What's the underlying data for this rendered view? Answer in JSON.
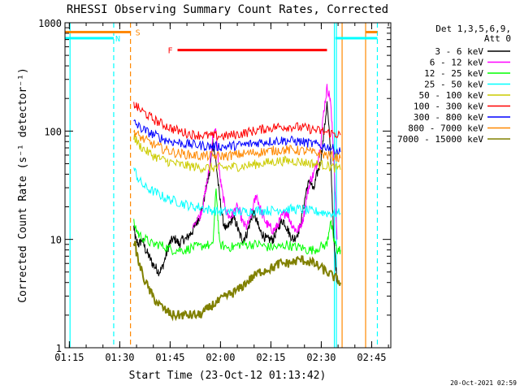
{
  "chart_data": {
    "type": "line",
    "title": "RHESSI Observing Summary Count Rates, Corrected",
    "xlabel": "Start Time (23-Oct-12 01:13:42)",
    "ylabel": "Corrected Count Rate (s⁻¹ detector⁻¹)",
    "x_unit": "minutes after 01:13:42",
    "xlim": [
      0,
      97
    ],
    "ylim": [
      1,
      1000
    ],
    "yscale": "log",
    "x_ticks": [
      {
        "v": 1.3,
        "label": "01:15"
      },
      {
        "v": 16.3,
        "label": "01:30"
      },
      {
        "v": 31.3,
        "label": "01:45"
      },
      {
        "v": 46.3,
        "label": "02:00"
      },
      {
        "v": 61.3,
        "label": "02:15"
      },
      {
        "v": 76.3,
        "label": "02:30"
      },
      {
        "v": 91.3,
        "label": "02:45"
      }
    ],
    "y_ticks": [
      {
        "v": 1,
        "label": "1"
      },
      {
        "v": 10,
        "label": "10"
      },
      {
        "v": 100,
        "label": "100"
      },
      {
        "v": 1000,
        "label": "1000"
      }
    ],
    "grid": false,
    "legend_position": "right",
    "legend_header": [
      "Det 1,3,5,6,9,",
      "Att 0"
    ],
    "timestamp": "20-Oct-2021 02:59",
    "series": [
      {
        "name": "3 - 6 keV",
        "color": "#000000",
        "x": [
          20.5,
          21,
          22,
          23,
          24,
          25,
          26,
          27,
          28,
          29,
          30,
          31,
          32,
          33,
          34,
          35,
          36,
          37,
          38,
          39,
          40,
          41,
          42,
          43,
          44,
          45,
          46,
          47,
          48,
          49,
          50,
          51,
          52,
          53,
          54,
          55,
          56,
          57,
          58,
          59,
          60,
          61,
          62,
          63,
          64,
          65,
          66,
          67,
          68,
          69,
          70,
          71,
          72,
          73,
          74,
          75,
          76,
          77,
          78,
          79,
          80,
          81
        ],
        "y": [
          13,
          10,
          9,
          10,
          8,
          7,
          6,
          5.5,
          5,
          5.5,
          7,
          9,
          10,
          10,
          9,
          10,
          10,
          11,
          12,
          14,
          16,
          20,
          30,
          40,
          80,
          50,
          25,
          15,
          12,
          14,
          16,
          14,
          11,
          10,
          11,
          14,
          18,
          15,
          12,
          11,
          10,
          10,
          10,
          12,
          14,
          15,
          13,
          11,
          10,
          11,
          13,
          20,
          30,
          35,
          28,
          40,
          50,
          90,
          180,
          70,
          10,
          4
        ]
      },
      {
        "name": "6 - 12 keV",
        "color": "#ff00ff",
        "x": [
          38,
          40,
          41,
          42,
          43,
          44,
          45,
          46,
          47,
          48,
          49,
          50,
          51,
          52,
          53,
          54,
          55,
          56,
          57,
          58,
          59,
          60,
          61,
          62,
          63,
          64,
          65,
          66,
          67,
          68,
          69,
          70,
          71,
          72,
          73,
          74,
          75,
          76,
          77,
          78,
          79,
          80,
          81
        ],
        "y": [
          14,
          16,
          20,
          30,
          45,
          90,
          100,
          40,
          25,
          18,
          16,
          17,
          20,
          18,
          14,
          13,
          15,
          20,
          26,
          20,
          16,
          14,
          13,
          12,
          13,
          15,
          17,
          18,
          15,
          13,
          12,
          13,
          16,
          25,
          35,
          40,
          50,
          70,
          150,
          250,
          200,
          60,
          10
        ]
      },
      {
        "name": "12 - 25 keV",
        "color": "#00ff00",
        "x": [
          20.5,
          22,
          24,
          26,
          28,
          30,
          32,
          34,
          36,
          38,
          40,
          42,
          44,
          45,
          46,
          48,
          50,
          52,
          54,
          56,
          58,
          60,
          62,
          64,
          66,
          68,
          70,
          72,
          74,
          76,
          78,
          79,
          80,
          81,
          82
        ],
        "y": [
          14,
          11,
          10,
          9,
          9,
          8.5,
          8,
          8,
          8,
          8.5,
          8.5,
          9,
          8.5,
          30,
          9,
          8.5,
          8.5,
          9,
          9,
          9,
          9,
          8.5,
          8.5,
          8.5,
          9,
          8.5,
          8.5,
          8,
          8,
          8.5,
          9,
          15,
          10,
          8,
          8
        ]
      },
      {
        "name": "25 - 50 keV",
        "color": "#00ffff",
        "x": [
          20.5,
          22,
          24,
          26,
          28,
          30,
          32,
          34,
          36,
          38,
          40,
          42,
          44,
          46,
          48,
          50,
          52,
          54,
          56,
          58,
          60,
          62,
          64,
          66,
          68,
          70,
          72,
          74,
          76,
          78,
          80,
          82
        ],
        "y": [
          45,
          35,
          30,
          28,
          26,
          24,
          23,
          22,
          21,
          20,
          20,
          19,
          18.5,
          18,
          18,
          18,
          18,
          18,
          18.5,
          18.5,
          18.5,
          18.5,
          19,
          19,
          19,
          19,
          18.5,
          18,
          18,
          17.5,
          17.5,
          17.5
        ]
      },
      {
        "name": "50 - 100 keV",
        "color": "#cccc00",
        "x": [
          20.5,
          22,
          24,
          26,
          28,
          30,
          32,
          34,
          36,
          38,
          40,
          42,
          44,
          46,
          48,
          50,
          52,
          54,
          56,
          58,
          60,
          62,
          64,
          66,
          68,
          70,
          72,
          74,
          76,
          78,
          80,
          82
        ],
        "y": [
          90,
          75,
          66,
          60,
          56,
          53,
          51,
          49,
          48,
          47,
          46,
          46,
          46,
          46,
          46,
          47,
          47,
          48,
          49,
          50,
          51,
          52,
          53,
          53,
          53,
          52,
          51,
          50,
          49,
          48,
          46,
          44
        ]
      },
      {
        "name": "100 - 300 keV",
        "color": "#ff0000",
        "x": [
          20.5,
          22,
          24,
          26,
          28,
          30,
          32,
          34,
          36,
          38,
          40,
          42,
          44,
          46,
          48,
          50,
          52,
          54,
          56,
          58,
          60,
          62,
          64,
          66,
          68,
          70,
          72,
          74,
          76,
          78,
          80,
          82
        ],
        "y": [
          180,
          160,
          145,
          130,
          120,
          112,
          105,
          100,
          96,
          93,
          92,
          91,
          90,
          90,
          90,
          92,
          94,
          97,
          100,
          103,
          106,
          108,
          110,
          110,
          110,
          108,
          106,
          103,
          100,
          97,
          95,
          92
        ]
      },
      {
        "name": "300 - 800 keV",
        "color": "#0000ff",
        "x": [
          20.5,
          22,
          24,
          26,
          28,
          30,
          32,
          34,
          36,
          38,
          40,
          42,
          44,
          46,
          48,
          50,
          52,
          54,
          56,
          58,
          60,
          62,
          64,
          66,
          68,
          70,
          72,
          74,
          76,
          78,
          80,
          82
        ],
        "y": [
          120,
          110,
          100,
          94,
          88,
          83,
          80,
          78,
          76,
          75,
          74,
          73,
          72,
          72,
          72,
          73,
          74,
          75,
          77,
          79,
          80,
          81,
          82,
          82,
          81,
          80,
          78,
          76,
          74,
          72,
          68,
          64
        ]
      },
      {
        "name": "800 - 7000 keV",
        "color": "#ff8800",
        "x": [
          20.5,
          22,
          24,
          26,
          28,
          30,
          32,
          34,
          36,
          38,
          40,
          42,
          44,
          46,
          48,
          50,
          52,
          54,
          56,
          58,
          60,
          62,
          64,
          66,
          68,
          70,
          72,
          74,
          76,
          78,
          80,
          82
        ],
        "y": [
          100,
          90,
          82,
          76,
          71,
          67,
          64,
          62,
          61,
          60,
          59,
          59,
          59,
          59,
          59,
          60,
          61,
          62,
          63,
          64,
          65,
          66,
          67,
          67,
          67,
          66,
          65,
          63,
          62,
          60,
          58,
          56
        ]
      },
      {
        "name": "7000 - 15000 keV",
        "color": "#808000",
        "x": [
          20.5,
          22,
          24,
          26,
          28,
          30,
          32,
          34,
          36,
          38,
          40,
          42,
          44,
          46,
          48,
          50,
          52,
          54,
          56,
          58,
          60,
          62,
          64,
          66,
          68,
          70,
          72,
          74,
          76,
          78,
          80,
          82
        ],
        "y": [
          10,
          6,
          4,
          3,
          2.5,
          2.2,
          2,
          2,
          2,
          2,
          2,
          2.2,
          2.5,
          2.7,
          3,
          3.2,
          3.5,
          4,
          4.5,
          5,
          5.3,
          5.5,
          6,
          6,
          6.2,
          6.5,
          6.3,
          6,
          5.5,
          5,
          4.5,
          4
        ]
      }
    ],
    "flag_bars": [
      {
        "label": "",
        "color": "#ff8800",
        "x0": -2,
        "x1": 19.5,
        "y": 820
      },
      {
        "label": "S",
        "color": "#ff8800",
        "x0": -2,
        "x1": 19.5,
        "y": 820
      },
      {
        "label": "",
        "color": "#ff8800",
        "x0": 89.5,
        "x1": 93,
        "y": 820
      },
      {
        "label": "N",
        "color": "#00ffff",
        "x0": -2,
        "x1": 14.5,
        "y": 720
      },
      {
        "label": "",
        "color": "#00ffff",
        "x0": 80.5,
        "x1": 93,
        "y": 720
      },
      {
        "label": "F",
        "color": "#ff0000",
        "x0": 33.5,
        "x1": 78,
        "y": 560
      }
    ],
    "vertical_markers": [
      {
        "x": 1.5,
        "color": "#00ffff",
        "style": "solid"
      },
      {
        "x": 14.5,
        "color": "#00ffff",
        "style": "dashed"
      },
      {
        "x": 19.5,
        "color": "#ff8800",
        "style": "dashed"
      },
      {
        "x": 80.2,
        "color": "#00ffff",
        "style": "solid"
      },
      {
        "x": 80.8,
        "color": "#00ffff",
        "style": "solid"
      },
      {
        "x": 82.5,
        "color": "#ff8800",
        "style": "solid"
      },
      {
        "x": 89.5,
        "color": "#ff8800",
        "style": "solid"
      },
      {
        "x": 93,
        "color": "#00ffff",
        "style": "dashed"
      }
    ]
  }
}
